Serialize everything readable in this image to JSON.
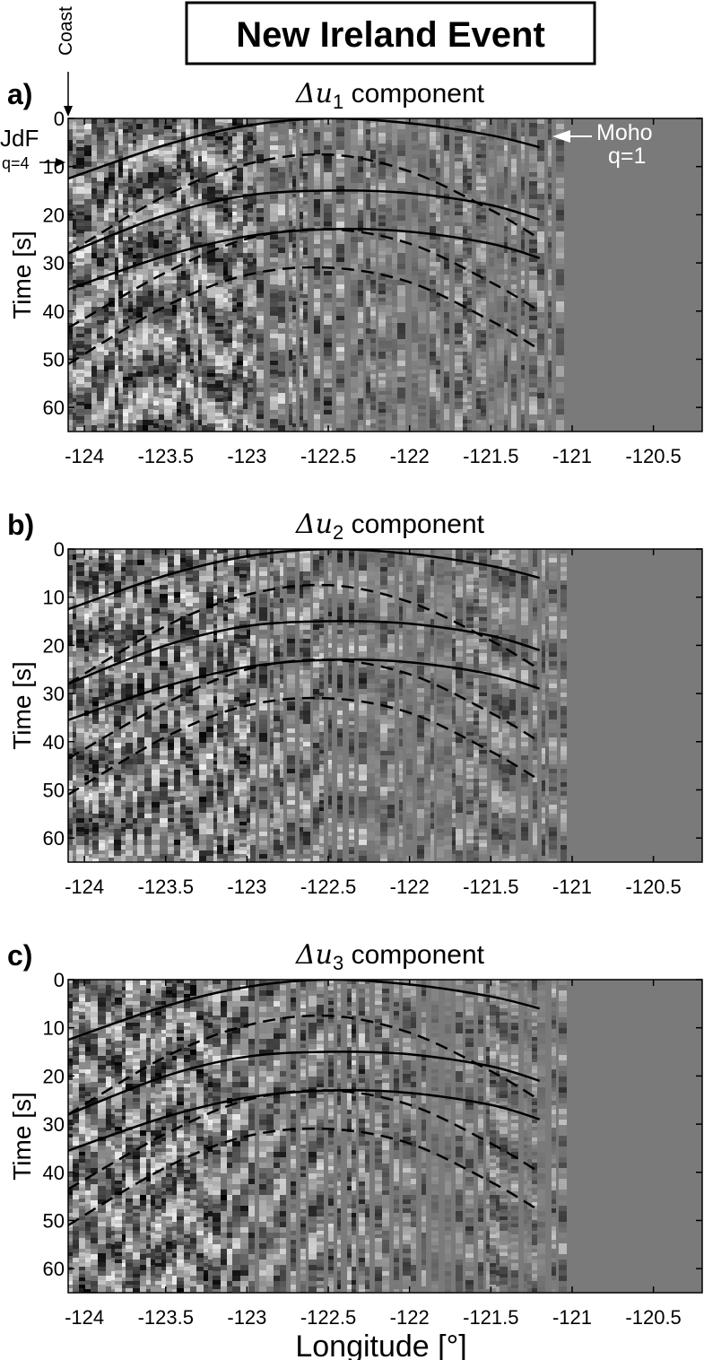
{
  "figure": {
    "title": "New Ireland Event",
    "xlabel": "Longitude [°]",
    "annotations": {
      "coast": "Coast",
      "jdf": "JdF",
      "q4": "q=4",
      "moho": "Moho",
      "q1": "q=1"
    }
  },
  "colors": {
    "panel_background": "#7a7a7a",
    "curve": "#000000",
    "frame": "#000000"
  },
  "chart_data": [
    {
      "type": "heatmap",
      "panel_label": "a)",
      "title_symbol": "Δu",
      "title_subscript": "1",
      "title_suffix": " component",
      "ylabel": "Time [s]",
      "xlim": [
        -124.1,
        -120.2
      ],
      "ylim": [
        0,
        65
      ],
      "y_reversed": true,
      "xticks": [
        -124,
        -123.5,
        -123,
        -122.5,
        -122,
        -121.5,
        -121,
        -120.5
      ],
      "xtick_labels": [
        "-124",
        "-123.5",
        "-123",
        "-122.5",
        "-122",
        "-121.5",
        "-121",
        "-120.5"
      ],
      "yticks": [
        0,
        10,
        20,
        30,
        40,
        50,
        60
      ],
      "ytick_labels": [
        "0",
        "10",
        "20",
        "30",
        "40",
        "50",
        "60"
      ],
      "data_extent_lon": [
        -124.1,
        -121.05
      ],
      "grid": false,
      "series": [
        {
          "style": "solid",
          "x": [
            -124.1,
            -123.5,
            -123,
            -122.5,
            -122,
            -121.5,
            -121.2
          ],
          "y": [
            12.5,
            5.5,
            1.5,
            0,
            1,
            3.5,
            6
          ]
        },
        {
          "style": "dashed",
          "x": [
            -124.1,
            -123.5,
            -123,
            -122.5,
            -122,
            -121.5,
            -121.2
          ],
          "y": [
            28,
            16,
            9.5,
            7.5,
            11,
            19,
            25
          ]
        },
        {
          "style": "solid",
          "x": [
            -124.1,
            -123.5,
            -123,
            -122.5,
            -122,
            -121.5,
            -121.2
          ],
          "y": [
            28,
            20,
            16,
            15,
            15.5,
            18,
            21
          ]
        },
        {
          "style": "solid",
          "x": [
            -124.1,
            -123.5,
            -123,
            -122.5,
            -122,
            -121.5,
            -121.2
          ],
          "y": [
            35.5,
            28.5,
            24.5,
            23,
            23.5,
            26,
            29
          ]
        },
        {
          "style": "dashed",
          "x": [
            -124.1,
            -123.5,
            -123,
            -122.5,
            -122,
            -121.5,
            -121.2
          ],
          "y": [
            43.5,
            32,
            25,
            23,
            26,
            34,
            40
          ]
        },
        {
          "style": "dashed",
          "x": [
            -124.1,
            -123.5,
            -123,
            -122.5,
            -122,
            -121.5,
            -121.2
          ],
          "y": [
            51,
            39,
            32.5,
            31,
            34,
            42,
            48
          ]
        }
      ]
    },
    {
      "type": "heatmap",
      "panel_label": "b)",
      "title_symbol": "Δu",
      "title_subscript": "2",
      "title_suffix": " component",
      "ylabel": "Time [s]",
      "xlim": [
        -124.1,
        -120.2
      ],
      "ylim": [
        0,
        65
      ],
      "y_reversed": true,
      "xticks": [
        -124,
        -123.5,
        -123,
        -122.5,
        -122,
        -121.5,
        -121,
        -120.5
      ],
      "xtick_labels": [
        "-124",
        "-123.5",
        "-123",
        "-122.5",
        "-122",
        "-121.5",
        "-121",
        "-120.5"
      ],
      "yticks": [
        0,
        10,
        20,
        30,
        40,
        50,
        60
      ],
      "ytick_labels": [
        "0",
        "10",
        "20",
        "30",
        "40",
        "50",
        "60"
      ],
      "data_extent_lon": [
        -124.1,
        -121.05
      ],
      "grid": false,
      "series": [
        {
          "style": "solid",
          "x": [
            -124.1,
            -123.5,
            -123,
            -122.5,
            -122,
            -121.5,
            -121.2
          ],
          "y": [
            12.5,
            5.5,
            1.5,
            0,
            1,
            3.5,
            6
          ]
        },
        {
          "style": "dashed",
          "x": [
            -124.1,
            -123.5,
            -123,
            -122.5,
            -122,
            -121.5,
            -121.2
          ],
          "y": [
            28,
            16,
            9.5,
            7.5,
            11,
            19,
            25
          ]
        },
        {
          "style": "solid",
          "x": [
            -124.1,
            -123.5,
            -123,
            -122.5,
            -122,
            -121.5,
            -121.2
          ],
          "y": [
            28,
            20,
            16,
            15,
            15.5,
            18,
            21
          ]
        },
        {
          "style": "solid",
          "x": [
            -124.1,
            -123.5,
            -123,
            -122.5,
            -122,
            -121.5,
            -121.2
          ],
          "y": [
            35.5,
            28.5,
            24.5,
            23,
            23.5,
            26,
            29
          ]
        },
        {
          "style": "dashed",
          "x": [
            -124.1,
            -123.5,
            -123,
            -122.5,
            -122,
            -121.5,
            -121.2
          ],
          "y": [
            43.5,
            32,
            25,
            23,
            26,
            34,
            40
          ]
        },
        {
          "style": "dashed",
          "x": [
            -124.1,
            -123.5,
            -123,
            -122.5,
            -122,
            -121.5,
            -121.2
          ],
          "y": [
            51,
            39,
            32.5,
            31,
            34,
            42,
            48
          ]
        }
      ]
    },
    {
      "type": "heatmap",
      "panel_label": "c)",
      "title_symbol": "Δu",
      "title_subscript": "3",
      "title_suffix": " component",
      "ylabel": "Time [s]",
      "xlim": [
        -124.1,
        -120.2
      ],
      "ylim": [
        0,
        65
      ],
      "y_reversed": true,
      "xticks": [
        -124,
        -123.5,
        -123,
        -122.5,
        -122,
        -121.5,
        -121,
        -120.5
      ],
      "xtick_labels": [
        "-124",
        "-123.5",
        "-123",
        "-122.5",
        "-122",
        "-121.5",
        "-121",
        "-120.5"
      ],
      "yticks": [
        0,
        10,
        20,
        30,
        40,
        50,
        60
      ],
      "ytick_labels": [
        "0",
        "10",
        "20",
        "30",
        "40",
        "50",
        "60"
      ],
      "data_extent_lon": [
        -124.1,
        -121.05
      ],
      "grid": false,
      "series": [
        {
          "style": "solid",
          "x": [
            -124.1,
            -123.5,
            -123,
            -122.5,
            -122,
            -121.5,
            -121.2
          ],
          "y": [
            12.5,
            5.5,
            1.5,
            0,
            1,
            3.5,
            6
          ]
        },
        {
          "style": "dashed",
          "x": [
            -124.1,
            -123.5,
            -123,
            -122.5,
            -122,
            -121.5,
            -121.2
          ],
          "y": [
            28,
            16,
            9.5,
            7.5,
            11,
            19,
            25
          ]
        },
        {
          "style": "solid",
          "x": [
            -124.1,
            -123.5,
            -123,
            -122.5,
            -122,
            -121.5,
            -121.2
          ],
          "y": [
            28,
            20,
            16,
            15,
            15.5,
            18,
            21
          ]
        },
        {
          "style": "solid",
          "x": [
            -124.1,
            -123.5,
            -123,
            -122.5,
            -122,
            -121.5,
            -121.2
          ],
          "y": [
            35.5,
            28.5,
            24.5,
            23,
            23.5,
            26,
            29
          ]
        },
        {
          "style": "dashed",
          "x": [
            -124.1,
            -123.5,
            -123,
            -122.5,
            -122,
            -121.5,
            -121.2
          ],
          "y": [
            43.5,
            32,
            25,
            23,
            26,
            34,
            40
          ]
        },
        {
          "style": "dashed",
          "x": [
            -124.1,
            -123.5,
            -123,
            -122.5,
            -122,
            -121.5,
            -121.2
          ],
          "y": [
            51,
            39,
            32.5,
            31,
            34,
            42,
            48
          ]
        }
      ]
    }
  ]
}
